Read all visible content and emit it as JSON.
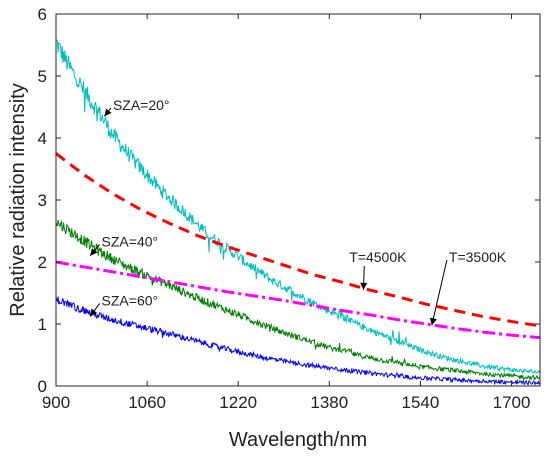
{
  "chart_data": {
    "type": "line",
    "title": "",
    "xlabel": "Wavelength/nm",
    "ylabel": "Relative radiation intensity",
    "xlim": [
      900,
      1750
    ],
    "ylim": [
      0,
      6
    ],
    "xticks": [
      900,
      1060,
      1220,
      1380,
      1540,
      1700
    ],
    "yticks": [
      0,
      1,
      2,
      3,
      4,
      5,
      6
    ],
    "grid": false,
    "legend": "none",
    "series": [
      {
        "key": "sza20",
        "color": "#00BFBF",
        "style": "solid-noisy",
        "points": [
          [
            900,
            5.55
          ],
          [
            920,
            5.2
          ],
          [
            950,
            4.75
          ],
          [
            980,
            4.35
          ],
          [
            1000,
            4.05
          ],
          [
            1040,
            3.6
          ],
          [
            1080,
            3.2
          ],
          [
            1120,
            2.85
          ],
          [
            1160,
            2.5
          ],
          [
            1200,
            2.22
          ],
          [
            1240,
            1.95
          ],
          [
            1280,
            1.7
          ],
          [
            1320,
            1.5
          ],
          [
            1360,
            1.3
          ],
          [
            1400,
            1.12
          ],
          [
            1440,
            0.95
          ],
          [
            1480,
            0.8
          ],
          [
            1520,
            0.65
          ],
          [
            1560,
            0.52
          ],
          [
            1600,
            0.42
          ],
          [
            1650,
            0.32
          ],
          [
            1700,
            0.26
          ],
          [
            1750,
            0.22
          ]
        ]
      },
      {
        "key": "sza40",
        "color": "#007F00",
        "style": "solid-noisy",
        "points": [
          [
            900,
            2.65
          ],
          [
            940,
            2.4
          ],
          [
            980,
            2.15
          ],
          [
            1020,
            1.95
          ],
          [
            1060,
            1.78
          ],
          [
            1100,
            1.62
          ],
          [
            1140,
            1.45
          ],
          [
            1180,
            1.3
          ],
          [
            1220,
            1.15
          ],
          [
            1260,
            1.0
          ],
          [
            1300,
            0.86
          ],
          [
            1340,
            0.74
          ],
          [
            1380,
            0.62
          ],
          [
            1420,
            0.52
          ],
          [
            1460,
            0.44
          ],
          [
            1500,
            0.37
          ],
          [
            1540,
            0.31
          ],
          [
            1600,
            0.25
          ],
          [
            1650,
            0.2
          ],
          [
            1700,
            0.16
          ],
          [
            1750,
            0.13
          ]
        ]
      },
      {
        "key": "sza60",
        "color": "#0000FF",
        "style": "solid-noisy",
        "points": [
          [
            900,
            1.4
          ],
          [
            940,
            1.25
          ],
          [
            980,
            1.12
          ],
          [
            1020,
            1.02
          ],
          [
            1060,
            0.93
          ],
          [
            1100,
            0.84
          ],
          [
            1140,
            0.74
          ],
          [
            1180,
            0.64
          ],
          [
            1220,
            0.55
          ],
          [
            1260,
            0.47
          ],
          [
            1300,
            0.4
          ],
          [
            1340,
            0.34
          ],
          [
            1380,
            0.29
          ],
          [
            1420,
            0.24
          ],
          [
            1460,
            0.2
          ],
          [
            1500,
            0.16
          ],
          [
            1540,
            0.13
          ],
          [
            1600,
            0.1
          ],
          [
            1650,
            0.08
          ],
          [
            1700,
            0.06
          ],
          [
            1750,
            0.05
          ]
        ]
      },
      {
        "key": "t4500",
        "color": "#FF0000",
        "style": "dashed",
        "points": [
          [
            900,
            3.75
          ],
          [
            950,
            3.4
          ],
          [
            1000,
            3.1
          ],
          [
            1050,
            2.84
          ],
          [
            1100,
            2.62
          ],
          [
            1150,
            2.42
          ],
          [
            1200,
            2.25
          ],
          [
            1250,
            2.1
          ],
          [
            1300,
            1.95
          ],
          [
            1350,
            1.8
          ],
          [
            1400,
            1.68
          ],
          [
            1450,
            1.55
          ],
          [
            1500,
            1.44
          ],
          [
            1550,
            1.32
          ],
          [
            1600,
            1.22
          ],
          [
            1650,
            1.12
          ],
          [
            1700,
            1.04
          ],
          [
            1750,
            0.97
          ]
        ]
      },
      {
        "key": "t3500",
        "color": "#FF00FF",
        "style": "dashdot",
        "points": [
          [
            900,
            2.0
          ],
          [
            950,
            1.92
          ],
          [
            1000,
            1.84
          ],
          [
            1050,
            1.76
          ],
          [
            1100,
            1.68
          ],
          [
            1150,
            1.6
          ],
          [
            1200,
            1.52
          ],
          [
            1250,
            1.45
          ],
          [
            1300,
            1.38
          ],
          [
            1350,
            1.3
          ],
          [
            1400,
            1.22
          ],
          [
            1450,
            1.15
          ],
          [
            1500,
            1.07
          ],
          [
            1550,
            1.0
          ],
          [
            1600,
            0.93
          ],
          [
            1650,
            0.87
          ],
          [
            1700,
            0.82
          ],
          [
            1750,
            0.78
          ]
        ]
      }
    ],
    "annotations": [
      {
        "text": "SZA=20°",
        "tip": [
          985,
          4.35
        ],
        "label": [
          1000,
          4.45
        ],
        "anchor": "start"
      },
      {
        "text": "SZA=40°",
        "tip": [
          960,
          2.1
        ],
        "label": [
          980,
          2.25
        ],
        "anchor": "start"
      },
      {
        "text": "SZA=60°",
        "tip": [
          960,
          1.12
        ],
        "label": [
          980,
          1.3
        ],
        "anchor": "start"
      },
      {
        "text": "T=4500K",
        "tip": [
          1440,
          1.55
        ],
        "label": [
          1415,
          2.0
        ],
        "anchor": "start"
      },
      {
        "text": "T=3500K",
        "tip": [
          1560,
          0.98
        ],
        "label": [
          1590,
          2.0
        ],
        "anchor": "start"
      }
    ]
  }
}
